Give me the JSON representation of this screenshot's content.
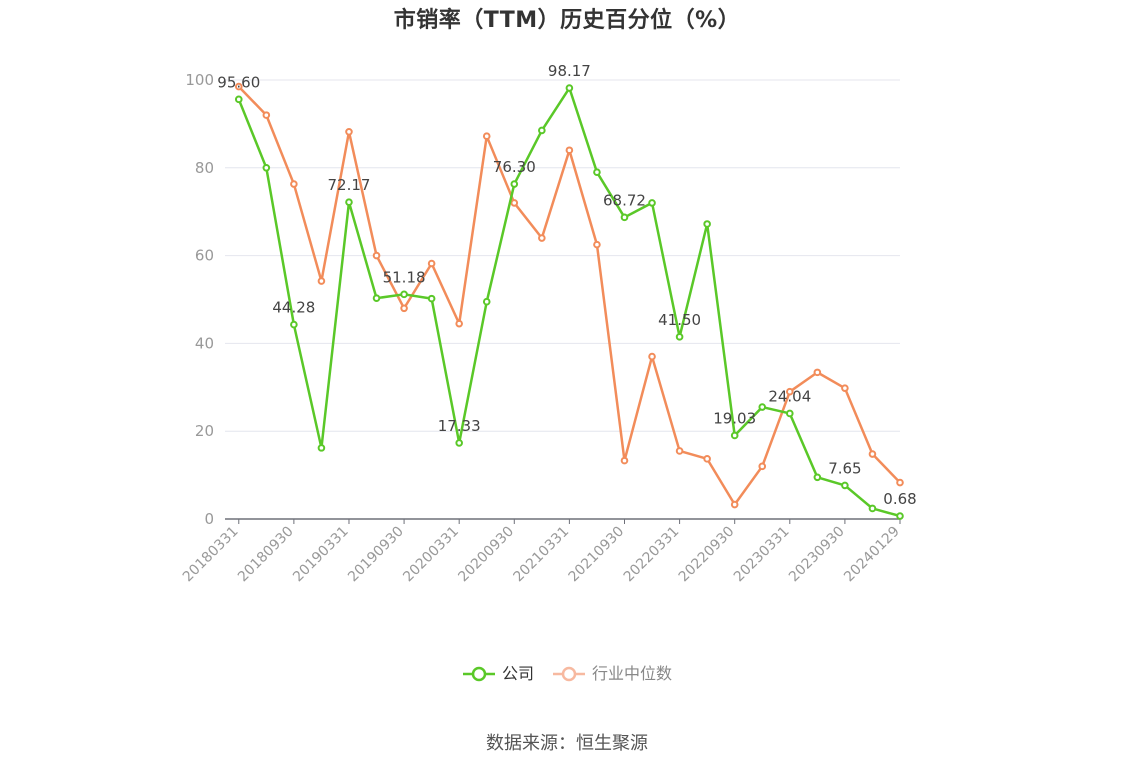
{
  "colors": {
    "company": "#5ac828",
    "industry": "#f28c5a",
    "industry_legend": "#f7b9a0",
    "grid": "#e4e6ee",
    "axis": "#6e7079",
    "tick_text": "#999999",
    "label_text": "#444444"
  },
  "legend": {
    "company": "公司",
    "industry": "行业中位数"
  },
  "source": "数据来源：恒生聚源",
  "chart_data": {
    "type": "line",
    "title": "市销率（TTM）历史百分位（%）",
    "xlabel": "",
    "ylabel": "",
    "ylim": [
      0,
      100
    ],
    "yticks": [
      0,
      20,
      40,
      60,
      80,
      100
    ],
    "grid": true,
    "legend_position": "bottom-center",
    "x": [
      "20180331",
      "20180630",
      "20180930",
      "20181231",
      "20190331",
      "20190630",
      "20190930",
      "20191231",
      "20200331",
      "20200630",
      "20200930",
      "20201231",
      "20210331",
      "20210630",
      "20210930",
      "20211231",
      "20220331",
      "20220630",
      "20220930",
      "20221231",
      "20230331",
      "20230630",
      "20230930",
      "20231231",
      "20240129"
    ],
    "xtick_labels": [
      "20180331",
      "20180930",
      "20190331",
      "20190930",
      "20200331",
      "20200930",
      "20210331",
      "20210930",
      "20220331",
      "20220930",
      "20230331",
      "20230930",
      "20240129"
    ],
    "series": [
      {
        "name": "公司",
        "values": [
          95.6,
          80.0,
          44.28,
          16.2,
          72.17,
          50.3,
          51.18,
          50.2,
          17.33,
          49.5,
          76.3,
          88.5,
          98.17,
          79.0,
          68.72,
          72.0,
          41.5,
          67.2,
          19.03,
          25.5,
          24.04,
          9.5,
          7.65,
          2.4,
          0.68
        ],
        "data_labels": {
          "0": "95.60",
          "2": "44.28",
          "4": "72.17",
          "6": "51.18",
          "8": "17.33",
          "10": "76.30",
          "12": "98.17",
          "14": "68.72",
          "16": "41.50",
          "18": "19.03",
          "20": "24.04",
          "22": "7.65",
          "24": "0.68"
        }
      },
      {
        "name": "行业中位数",
        "values": [
          98.5,
          92.0,
          76.3,
          54.2,
          88.2,
          60.0,
          48.0,
          58.2,
          44.5,
          87.2,
          72.0,
          64.0,
          84.0,
          62.5,
          13.3,
          37.0,
          15.5,
          13.7,
          3.3,
          12.0,
          29.0,
          33.4,
          29.8,
          14.8,
          8.3
        ]
      }
    ]
  }
}
